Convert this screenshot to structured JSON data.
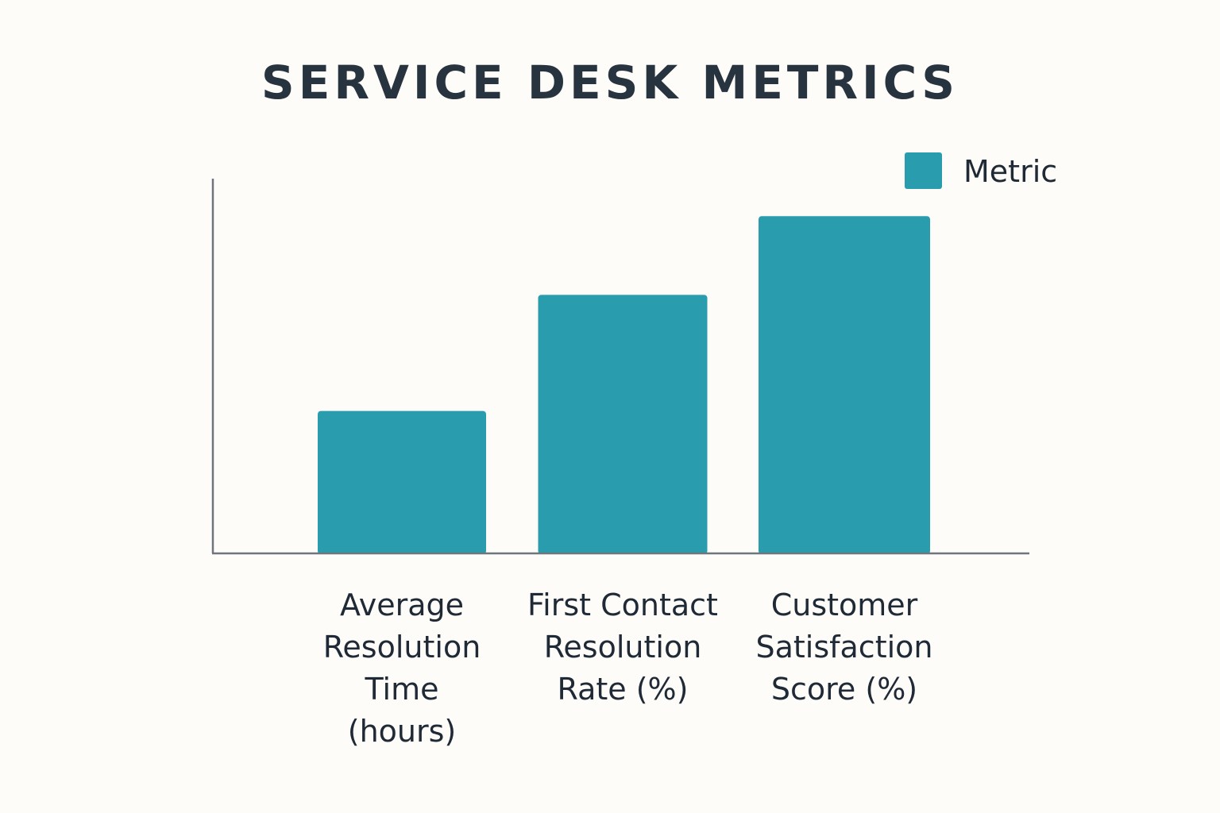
{
  "colors": {
    "background": "#fdfcf8",
    "bar": "#299dad",
    "title": "#27333f",
    "text": "#1f2a36",
    "axis": "#6f757c"
  },
  "chart_data": {
    "type": "bar",
    "title": "SERVICE DESK METRICS",
    "xlabel": "",
    "ylabel": "",
    "categories": [
      [
        "Average",
        "Resolution",
        "Time",
        "(hours)"
      ],
      [
        "First Contact",
        "Resolution",
        "Rate (%)"
      ],
      [
        "Customer",
        "Satisfaction",
        "Score (%)"
      ]
    ],
    "series": [
      {
        "name": "Metric",
        "values": [
          38,
          69,
          90
        ],
        "color": "#299dad"
      }
    ],
    "ylim": [
      0,
      100
    ],
    "grid": false,
    "y_ticks_shown": false,
    "legend": {
      "position": "top-right",
      "entries": [
        "Metric"
      ]
    }
  }
}
